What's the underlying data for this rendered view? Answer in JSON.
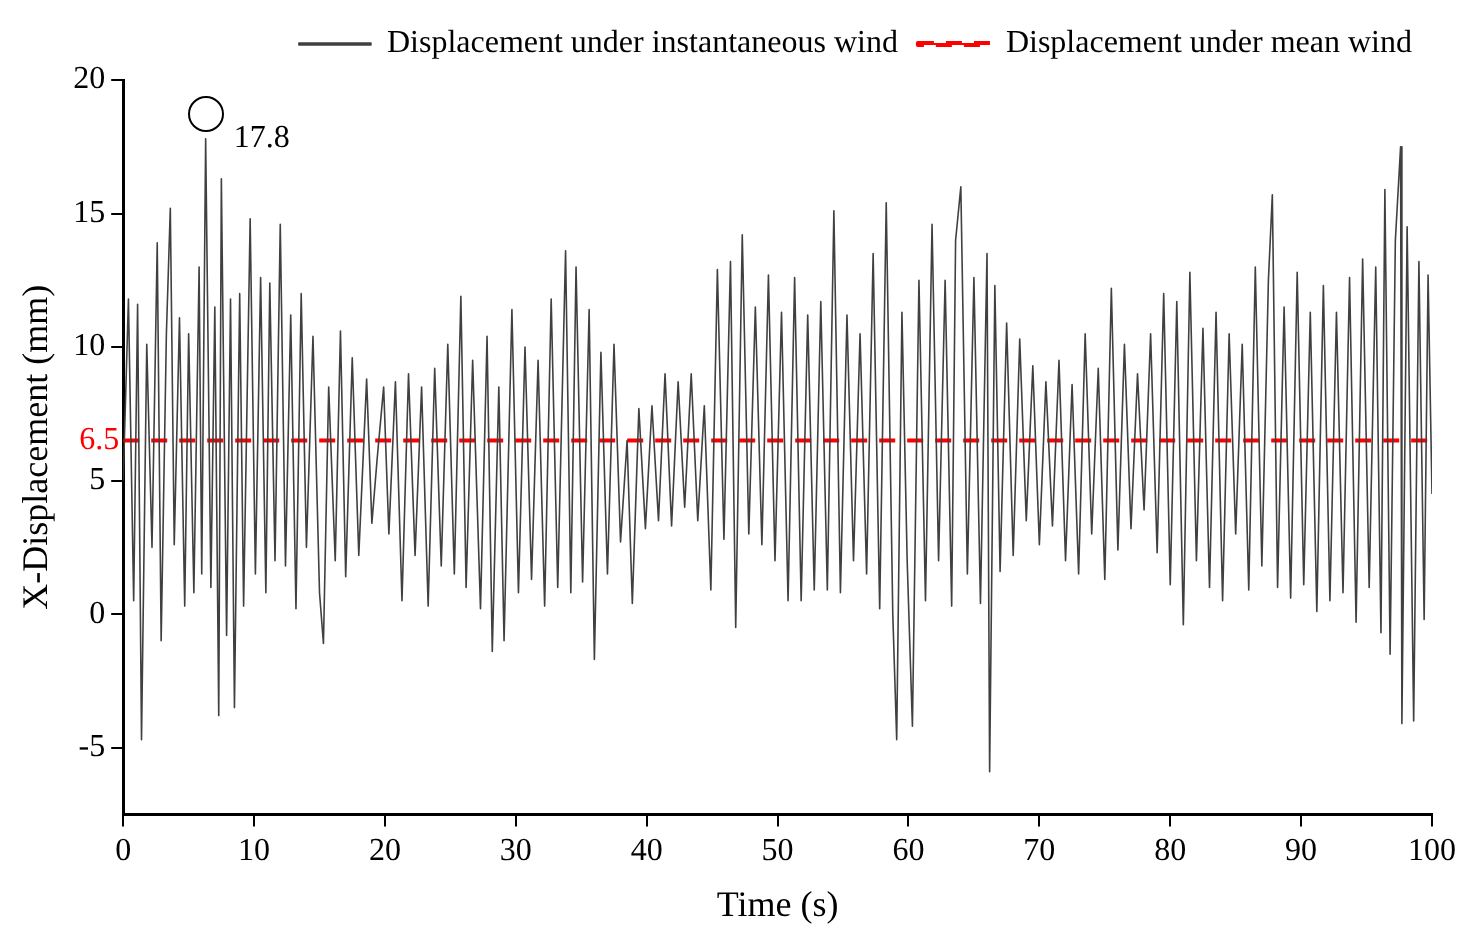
{
  "chart_data": {
    "type": "line",
    "xlabel": "Time (s)",
    "ylabel": "X-Displacement (mm)",
    "xlim": [
      0,
      100
    ],
    "xticks": [
      0,
      10,
      20,
      30,
      40,
      50,
      60,
      70,
      80,
      90,
      100
    ],
    "ylim": [
      -7.5,
      20
    ],
    "yticks": [
      -5,
      0,
      5,
      10,
      15,
      20
    ],
    "legend": "top right",
    "marker": "none",
    "annotations": [
      {
        "text": "17.8",
        "x": 6.3,
        "y": 17.8
      },
      {
        "text": "6.5",
        "x": 0,
        "y": 6.5
      }
    ],
    "series": [
      {
        "name": "Displacement under instantaneous wind",
        "color": "#404040",
        "line_style": "solid",
        "x": [
          0,
          0.4,
          0.8,
          1.1,
          1.4,
          1.8,
          2.2,
          2.6,
          2.9,
          3.3,
          3.6,
          3.9,
          4.3,
          4.7,
          5.0,
          5.4,
          5.8,
          6.0,
          6.3,
          6.7,
          7.0,
          7.3,
          7.5,
          7.9,
          8.2,
          8.5,
          8.9,
          9.2,
          9.7,
          10.1,
          10.5,
          10.9,
          11.2,
          11.6,
          12.0,
          12.4,
          12.8,
          13.2,
          13.6,
          14.0,
          14.5,
          15.0,
          15.3,
          15.7,
          16.2,
          16.6,
          17.0,
          17.5,
          18.0,
          18.6,
          19.0,
          19.4,
          19.9,
          20.3,
          20.8,
          21.3,
          21.8,
          22.3,
          22.8,
          23.3,
          23.8,
          24.3,
          24.8,
          25.3,
          25.8,
          26.2,
          26.7,
          27.3,
          27.8,
          28.2,
          28.7,
          29.1,
          29.7,
          30.2,
          30.7,
          31.2,
          31.7,
          32.2,
          32.7,
          33.2,
          33.8,
          34.2,
          34.6,
          35.1,
          35.6,
          36.0,
          36.5,
          37.0,
          37.5,
          38.0,
          38.5,
          38.9,
          39.4,
          39.9,
          40.4,
          40.9,
          41.4,
          41.9,
          42.4,
          42.9,
          43.4,
          43.9,
          44.4,
          44.9,
          45.4,
          45.9,
          46.4,
          46.8,
          47.3,
          47.8,
          48.3,
          48.8,
          49.3,
          49.8,
          50.3,
          50.8,
          51.3,
          51.8,
          52.3,
          52.8,
          53.3,
          53.8,
          54.3,
          54.8,
          55.3,
          55.8,
          56.3,
          56.8,
          57.3,
          57.8,
          58.3,
          58.8,
          59.1,
          59.5,
          59.9,
          60.3,
          60.8,
          61.3,
          61.8,
          62.3,
          62.8,
          63.3,
          63.6,
          64.0,
          64.5,
          65.0,
          65.5,
          66.0,
          66.2,
          66.6,
          67.0,
          67.5,
          68.0,
          68.5,
          69.0,
          69.5,
          70.0,
          70.5,
          71.0,
          71.5,
          72.0,
          72.5,
          73.0,
          73.5,
          74.0,
          74.5,
          75.0,
          75.5,
          76.0,
          76.5,
          77.0,
          77.5,
          78.0,
          78.5,
          79.0,
          79.5,
          80.0,
          80.5,
          81.0,
          81.5,
          82.0,
          82.5,
          83.0,
          83.5,
          84.0,
          84.5,
          85.0,
          85.5,
          86.0,
          86.5,
          87.0,
          87.5,
          87.8,
          88.2,
          88.7,
          89.2,
          89.7,
          90.2,
          90.7,
          91.2,
          91.7,
          92.2,
          92.7,
          93.2,
          93.7,
          94.2,
          94.7,
          95.2,
          95.7,
          96.1,
          96.4,
          96.8,
          97.2,
          97.6,
          97.7,
          98.1,
          98.6,
          99.0,
          99.4,
          99.7,
          100
        ],
        "values": [
          5,
          11.8,
          0.5,
          11.6,
          -4.7,
          10.1,
          2.5,
          13.9,
          -1.0,
          10.5,
          15.2,
          2.6,
          11.1,
          0.3,
          10.5,
          0.8,
          13.0,
          1.5,
          17.8,
          1.0,
          11.5,
          -3.8,
          16.3,
          -0.8,
          11.8,
          -3.5,
          12.0,
          0.3,
          14.8,
          1.5,
          12.6,
          0.8,
          12.4,
          2.0,
          14.6,
          1.8,
          11.2,
          0.2,
          12.0,
          2.5,
          10.4,
          0.8,
          -1.1,
          8.5,
          2.0,
          10.6,
          1.4,
          9.6,
          2.2,
          8.8,
          3.4,
          5.8,
          8.5,
          3.0,
          8.7,
          0.5,
          9.0,
          2.2,
          8.5,
          0.3,
          9.2,
          1.8,
          10.1,
          1.5,
          11.9,
          1.0,
          9.5,
          0.2,
          10.4,
          -1.4,
          8.5,
          -1.0,
          11.4,
          0.8,
          10.0,
          1.3,
          9.5,
          0.3,
          11.8,
          1.0,
          13.6,
          0.8,
          13.0,
          1.2,
          11.4,
          -1.7,
          9.8,
          1.5,
          10.1,
          2.7,
          6.5,
          0.4,
          7.7,
          3.2,
          7.8,
          3.5,
          9.0,
          3.3,
          8.7,
          4.0,
          9.0,
          3.5,
          7.8,
          0.9,
          12.9,
          2.8,
          13.2,
          -0.5,
          14.2,
          3.0,
          11.5,
          2.6,
          12.7,
          2.0,
          11.3,
          0.5,
          12.6,
          0.5,
          11.2,
          0.9,
          11.7,
          0.9,
          15.1,
          0.8,
          11.2,
          2.0,
          10.5,
          1.5,
          13.5,
          0.2,
          15.4,
          0.0,
          -4.7,
          11.3,
          2.0,
          -4.2,
          12.5,
          0.5,
          14.6,
          2.0,
          12.5,
          0.3,
          14.0,
          16.0,
          1.5,
          12.6,
          0.4,
          13.5,
          -5.9,
          12.3,
          1.6,
          10.9,
          2.2,
          10.3,
          3.5,
          9.3,
          2.6,
          8.7,
          3.3,
          9.5,
          2.0,
          8.6,
          1.5,
          10.5,
          3.0,
          9.2,
          1.3,
          12.2,
          2.4,
          10.1,
          3.2,
          9.0,
          3.9,
          10.5,
          2.3,
          12.0,
          1.1,
          11.7,
          -0.4,
          12.8,
          2.0,
          10.7,
          1.0,
          11.3,
          0.5,
          10.5,
          3.0,
          10.1,
          0.9,
          13.0,
          1.8,
          12.5,
          15.7,
          1.0,
          11.5,
          0.6,
          12.8,
          1.1,
          11.3,
          0.1,
          12.3,
          0.5,
          11.3,
          0.8,
          12.6,
          -0.3,
          13.3,
          1.0,
          13.0,
          -0.7,
          15.9,
          -1.5,
          14.0,
          17.5,
          -4.1,
          14.5,
          -4.0,
          13.2,
          -0.2,
          12.7,
          4.5
        ]
      },
      {
        "name": "Displacement under mean wind",
        "color": "#ff0000",
        "line_style": "dashed",
        "x": [
          0,
          100
        ],
        "values": [
          6.5,
          6.5
        ]
      }
    ]
  }
}
